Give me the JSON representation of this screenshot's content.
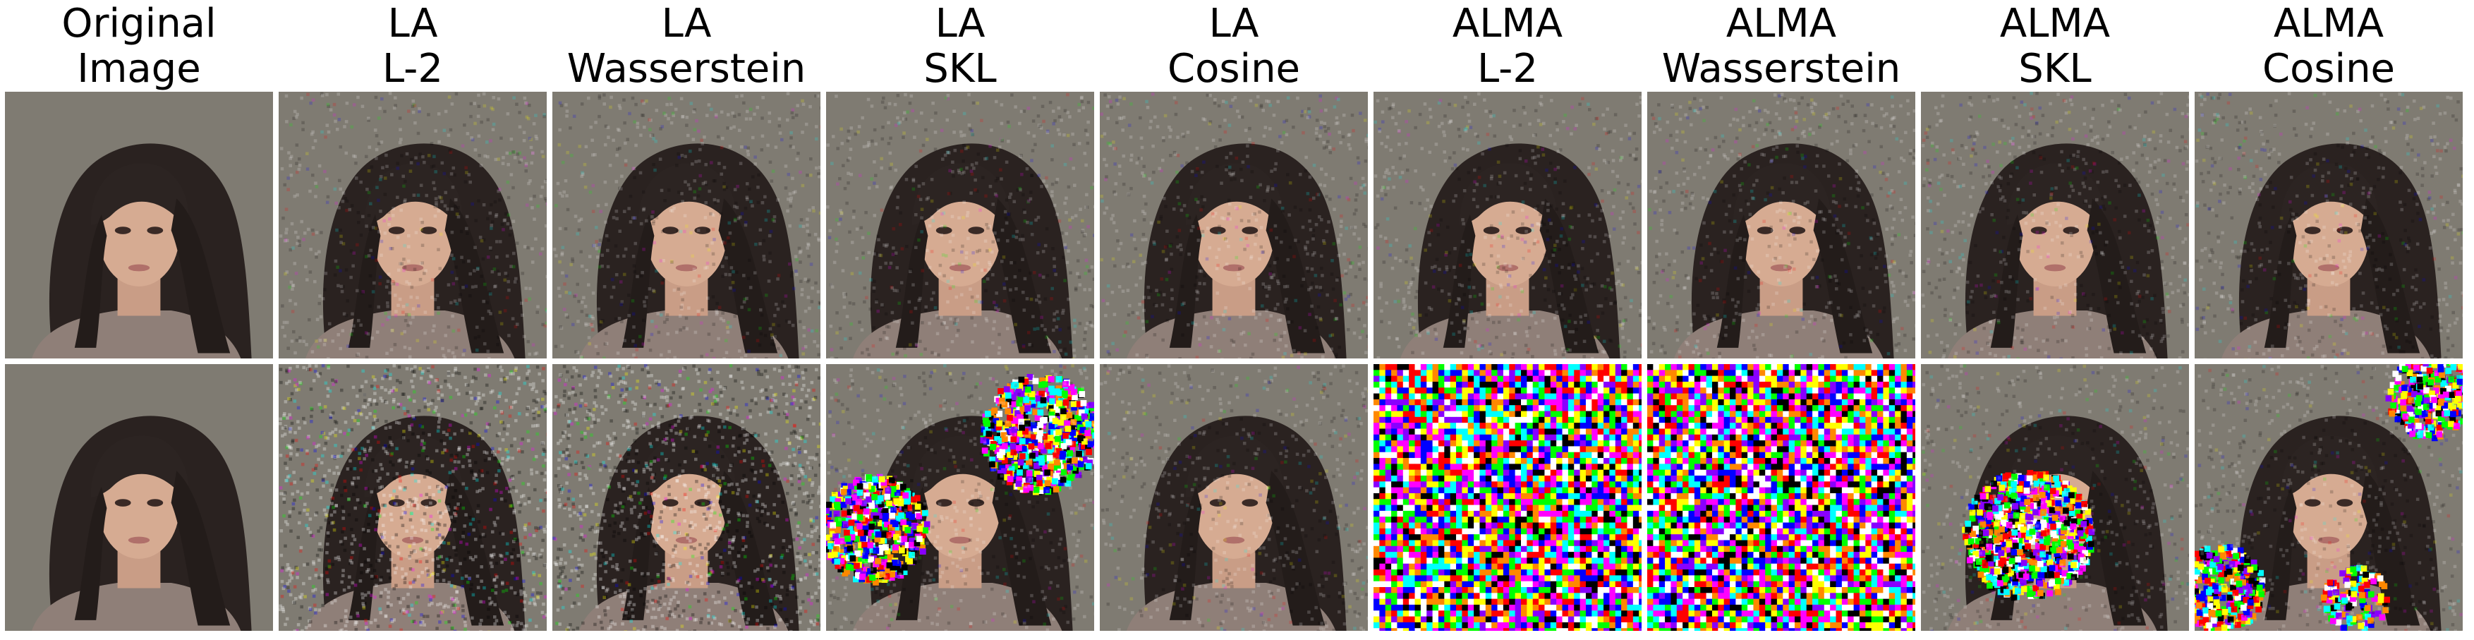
{
  "columns": [
    {
      "line1": "Original",
      "line2": "Image"
    },
    {
      "line1": "LA",
      "line2": "L-2"
    },
    {
      "line1": "LA",
      "line2": "Wasserstein"
    },
    {
      "line1": "LA",
      "line2": "SKL"
    },
    {
      "line1": "LA",
      "line2": "Cosine"
    },
    {
      "line1": "ALMA",
      "line2": "L-2"
    },
    {
      "line1": "ALMA",
      "line2": "Wasserstein"
    },
    {
      "line1": "ALMA",
      "line2": "SKL"
    },
    {
      "line1": "ALMA",
      "line2": "Cosine"
    }
  ],
  "rows": [
    {
      "panels": [
        {
          "content": "face-portrait",
          "noise": "none"
        },
        {
          "content": "face-portrait",
          "noise": "light"
        },
        {
          "content": "face-portrait",
          "noise": "light"
        },
        {
          "content": "face-portrait",
          "noise": "light"
        },
        {
          "content": "face-portrait",
          "noise": "light"
        },
        {
          "content": "face-portrait",
          "noise": "light"
        },
        {
          "content": "face-portrait",
          "noise": "light"
        },
        {
          "content": "face-portrait",
          "noise": "light"
        },
        {
          "content": "face-portrait",
          "noise": "light"
        }
      ]
    },
    {
      "panels": [
        {
          "content": "face-portrait",
          "noise": "none"
        },
        {
          "content": "face-portrait",
          "noise": "medium"
        },
        {
          "content": "face-portrait",
          "noise": "medium"
        },
        {
          "content": "face-portrait",
          "noise": "color-blobs-left-right"
        },
        {
          "content": "face-portrait",
          "noise": "light"
        },
        {
          "content": "color-noise",
          "noise": "full"
        },
        {
          "content": "color-noise",
          "noise": "full"
        },
        {
          "content": "face-portrait",
          "noise": "color-blob-center"
        },
        {
          "content": "face-portrait",
          "noise": "color-blobs-corners"
        }
      ]
    }
  ]
}
